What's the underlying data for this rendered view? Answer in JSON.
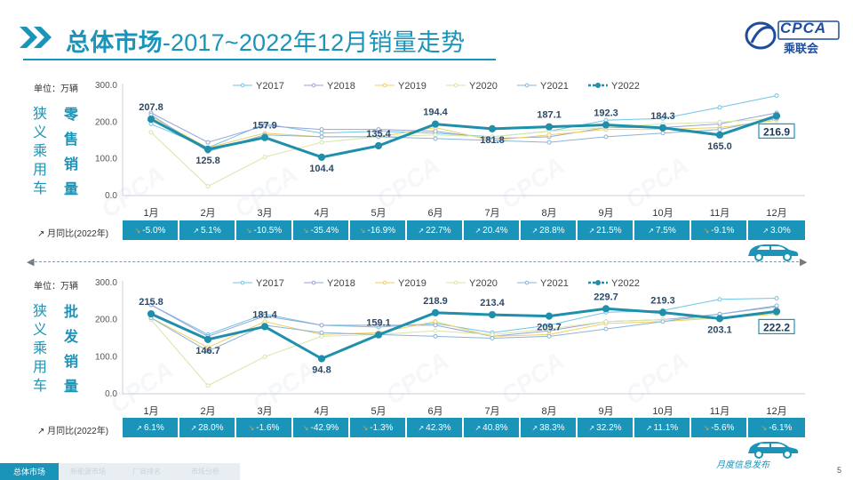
{
  "header": {
    "title_bold": "总体市场",
    "title_rest": "-2017~2022年12月销量走势",
    "logo_text": "CPCA",
    "logo_sub": "乘联会"
  },
  "unit_label": "单位：万辆",
  "series_names": [
    "Y2017",
    "Y2018",
    "Y2019",
    "Y2020",
    "Y2021",
    "Y2022"
  ],
  "series_colors": [
    "#6ec6e6",
    "#9aa3d4",
    "#f0d060",
    "#d6e6a8",
    "#8ab4d8",
    "#1f8fab"
  ],
  "months": [
    "1月",
    "2月",
    "3月",
    "4月",
    "5月",
    "6月",
    "7月",
    "8月",
    "9月",
    "10月",
    "11月",
    "12月"
  ],
  "yoy_label": "月同比(2022年)",
  "top": {
    "side_label": "狭义乘用车",
    "side_label2": "零售销量",
    "y_ticks": [
      "300.0",
      "200.0",
      "100.0",
      "0.0"
    ],
    "highlight_label": "216.9",
    "yoy": [
      {
        "v": "-5.0%",
        "d": "dn"
      },
      {
        "v": "5.1%",
        "d": "up"
      },
      {
        "v": "-10.5%",
        "d": "dn"
      },
      {
        "v": "-35.4%",
        "d": "dn"
      },
      {
        "v": "-16.9%",
        "d": "dn"
      },
      {
        "v": "22.7%",
        "d": "up"
      },
      {
        "v": "20.4%",
        "d": "up"
      },
      {
        "v": "28.8%",
        "d": "up"
      },
      {
        "v": "21.5%",
        "d": "up"
      },
      {
        "v": "7.5%",
        "d": "up"
      },
      {
        "v": "-9.1%",
        "d": "dn"
      },
      {
        "v": "3.0%",
        "d": "up"
      }
    ],
    "data_labels": [
      "207.8",
      "125.8",
      "157.9",
      "104.4",
      "135.4",
      "194.4",
      "181.8",
      "187.1",
      "192.3",
      "184.3",
      "165.0",
      ""
    ]
  },
  "bottom": {
    "side_label": "狭义乘用车",
    "side_label2": "批发销量",
    "y_ticks": [
      "300.0",
      "200.0",
      "100.0",
      "0.0"
    ],
    "highlight_label": "222.2",
    "yoy": [
      {
        "v": "6.1%",
        "d": "up"
      },
      {
        "v": "28.0%",
        "d": "up"
      },
      {
        "v": "-1.6%",
        "d": "dn"
      },
      {
        "v": "-42.9%",
        "d": "dn"
      },
      {
        "v": "-1.3%",
        "d": "dn"
      },
      {
        "v": "42.3%",
        "d": "up"
      },
      {
        "v": "40.8%",
        "d": "up"
      },
      {
        "v": "38.3%",
        "d": "up"
      },
      {
        "v": "32.2%",
        "d": "up"
      },
      {
        "v": "11.1%",
        "d": "up"
      },
      {
        "v": "-5.6%",
        "d": "dn"
      },
      {
        "v": "-6.1%",
        "d": "dn"
      }
    ],
    "data_labels": [
      "215.8",
      "146.7",
      "181.4",
      "94.8",
      "159.1",
      "218.9",
      "213.4",
      "209.7",
      "229.7",
      "219.3",
      "203.1",
      ""
    ]
  },
  "chart_data": [
    {
      "type": "line",
      "title": "狭义乘用车零售销量",
      "ylabel": "万辆",
      "ylim": [
        0,
        300
      ],
      "categories": [
        "1月",
        "2月",
        "3月",
        "4月",
        "5月",
        "6月",
        "7月",
        "8月",
        "9月",
        "10月",
        "11月",
        "12月"
      ],
      "series": [
        {
          "name": "Y2017",
          "values": [
            195,
            130,
            195,
            170,
            175,
            170,
            160,
            175,
            205,
            210,
            240,
            272
          ]
        },
        {
          "name": "Y2018",
          "values": [
            225,
            145,
            190,
            180,
            180,
            175,
            155,
            160,
            185,
            185,
            195,
            225
          ]
        },
        {
          "name": "Y2019",
          "values": [
            215,
            130,
            170,
            160,
            160,
            185,
            150,
            165,
            180,
            180,
            185,
            205
          ]
        },
        {
          "name": "Y2020",
          "values": [
            172,
            25,
            105,
            145,
            160,
            165,
            160,
            175,
            185,
            195,
            200,
            210
          ]
        },
        {
          "name": "Y2021",
          "values": [
            220,
            120,
            165,
            160,
            160,
            155,
            150,
            145,
            160,
            170,
            180,
            210
          ]
        },
        {
          "name": "Y2022",
          "values": [
            207.8,
            125.8,
            157.9,
            104.4,
            135.4,
            194.4,
            181.8,
            187.1,
            192.3,
            184.3,
            165.0,
            216.9
          ]
        }
      ]
    },
    {
      "type": "line",
      "title": "狭义乘用车批发销量",
      "ylabel": "万辆",
      "ylim": [
        0,
        300
      ],
      "categories": [
        "1月",
        "2月",
        "3月",
        "4月",
        "5月",
        "6月",
        "7月",
        "8月",
        "9月",
        "10月",
        "11月",
        "12月"
      ],
      "series": [
        {
          "name": "Y2017",
          "values": [
            240,
            160,
            215,
            185,
            180,
            190,
            165,
            185,
            220,
            225,
            255,
            258
          ]
        },
        {
          "name": "Y2018",
          "values": [
            240,
            155,
            210,
            185,
            185,
            185,
            155,
            170,
            195,
            200,
            215,
            235
          ]
        },
        {
          "name": "Y2019",
          "values": [
            205,
            125,
            195,
            160,
            165,
            195,
            155,
            160,
            190,
            195,
            205,
            215
          ]
        },
        {
          "name": "Y2020",
          "values": [
            200,
            22,
            100,
            155,
            160,
            170,
            160,
            175,
            195,
            200,
            205,
            225
          ]
        },
        {
          "name": "Y2021",
          "values": [
            205,
            115,
            185,
            165,
            160,
            155,
            150,
            155,
            175,
            195,
            215,
            238
          ]
        },
        {
          "name": "Y2022",
          "values": [
            215.8,
            146.7,
            181.4,
            94.8,
            159.1,
            218.9,
            213.4,
            209.7,
            229.7,
            219.3,
            203.1,
            222.2
          ]
        }
      ]
    }
  ],
  "footer": {
    "tabs": [
      "总体市场",
      "新能源市场",
      "厂商排名",
      "市场分析"
    ],
    "tagline": "月度信息发布",
    "page": "5"
  }
}
